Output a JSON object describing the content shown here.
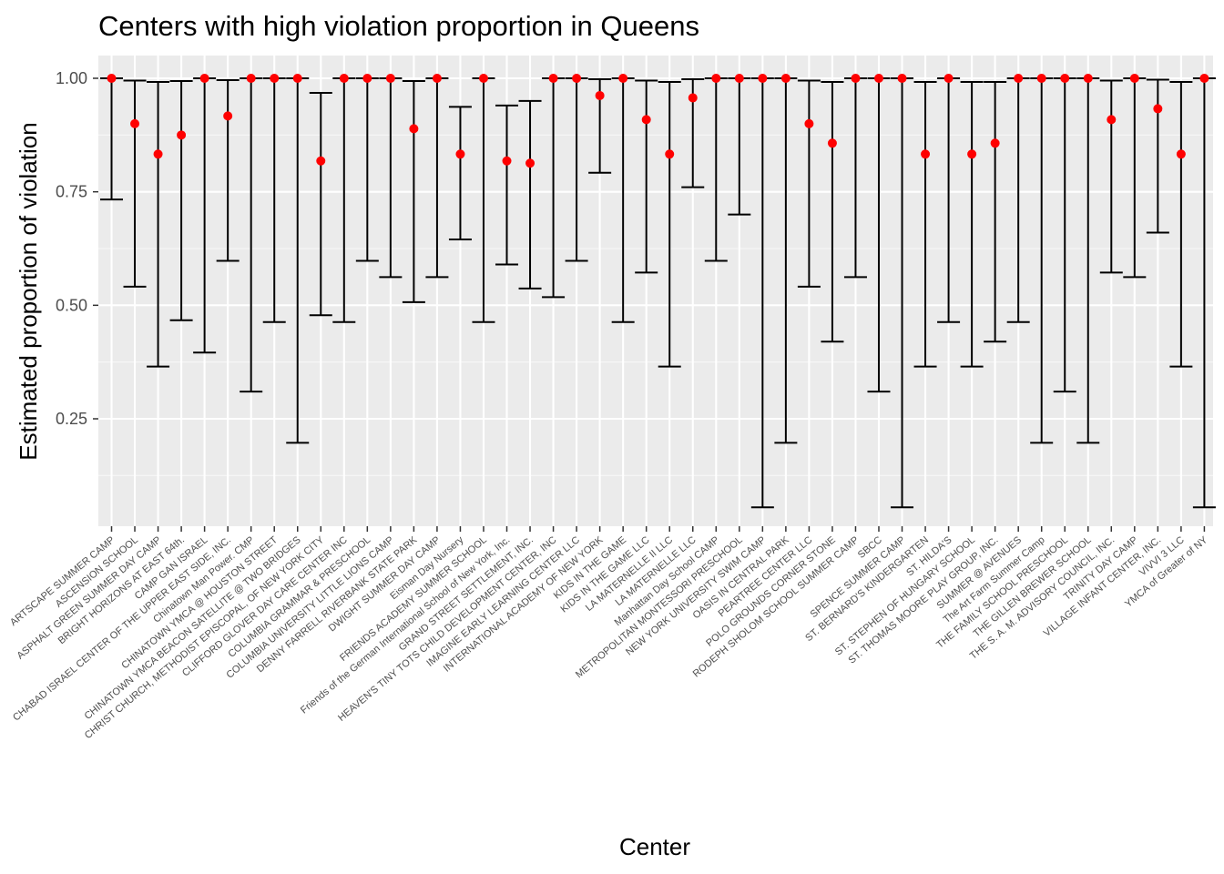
{
  "chart_data": {
    "type": "scatter",
    "title": "Centers with high violation proportion in Queens",
    "xlabel": "Center",
    "ylabel": "Estimated proportion of violation",
    "ylim": [
      0.0,
      1.0
    ],
    "yticks": [
      "0.25",
      "0.50",
      "0.75",
      "1.00"
    ],
    "grid": true,
    "point_color": "#ff0000",
    "errorbar_color": "#000000",
    "panel_background": "#ebebeb",
    "points": [
      {
        "center": "ARTSCAPE SUMMER CAMP",
        "estimate": 1.0,
        "lower": 0.733,
        "upper": 1.0
      },
      {
        "center": "ASCENSION SCHOOL",
        "estimate": 0.9,
        "lower": 0.541,
        "upper": 0.995
      },
      {
        "center": "ASPHALT GREEN SUMMER DAY CAMP",
        "estimate": 0.833,
        "lower": 0.365,
        "upper": 0.992
      },
      {
        "center": "BRIGHT HORIZONS AT EAST 64th.",
        "estimate": 0.875,
        "lower": 0.467,
        "upper": 0.994
      },
      {
        "center": "CAMP GAN ISRAEL",
        "estimate": 1.0,
        "lower": 0.396,
        "upper": 1.0
      },
      {
        "center": "CHABAD ISRAEL CENTER OF THE UPPER EAST SIDE, INC.",
        "estimate": 0.917,
        "lower": 0.598,
        "upper": 0.996
      },
      {
        "center": "Chinatown Man Power. CMP",
        "estimate": 1.0,
        "lower": 0.31,
        "upper": 1.0
      },
      {
        "center": "CHINATOWN YMCA @ HOUSTON STREET",
        "estimate": 1.0,
        "lower": 0.463,
        "upper": 1.0
      },
      {
        "center": "CHINATOWN YMCA BEACON SATELLITE @ TWO BRIDGES",
        "estimate": 1.0,
        "lower": 0.197,
        "upper": 1.0
      },
      {
        "center": "CHRIST CHURCH, METHODIST EPISCOPAL, OF NEW YORK CITY",
        "estimate": 0.818,
        "lower": 0.478,
        "upper": 0.968
      },
      {
        "center": "CLIFFORD GLOVER DAY CARE CENTER INC",
        "estimate": 1.0,
        "lower": 0.463,
        "upper": 1.0
      },
      {
        "center": "COLUMBIA GRAMMAR & PRESCHOOL",
        "estimate": 1.0,
        "lower": 0.598,
        "upper": 1.0
      },
      {
        "center": "COLUMBIA UNIVERSITY LITTLE LIONS CAMP",
        "estimate": 1.0,
        "lower": 0.562,
        "upper": 1.0
      },
      {
        "center": "DENNY FARRELL RIVERBANK STATE PARK",
        "estimate": 0.889,
        "lower": 0.507,
        "upper": 0.994
      },
      {
        "center": "DWIGHT SUMMER DAY CAMP",
        "estimate": 1.0,
        "lower": 0.562,
        "upper": 1.0
      },
      {
        "center": "Eisman Day Nursery",
        "estimate": 0.833,
        "lower": 0.645,
        "upper": 0.937
      },
      {
        "center": "FRIENDS ACADEMY SUMMER SCHOOL",
        "estimate": 1.0,
        "lower": 0.463,
        "upper": 1.0
      },
      {
        "center": "Friends of the German International School of New York, Inc.",
        "estimate": 0.818,
        "lower": 0.59,
        "upper": 0.94
      },
      {
        "center": "GRAND STREET SETTLEMENT, INC.",
        "estimate": 0.813,
        "lower": 0.537,
        "upper": 0.95
      },
      {
        "center": "HEAVEN'S TINY TOTS CHILD DEVELOPMENT CENTER, INC",
        "estimate": 1.0,
        "lower": 0.518,
        "upper": 1.0
      },
      {
        "center": "IMAGINE EARLY LEARNING CENTER LLC",
        "estimate": 1.0,
        "lower": 0.598,
        "upper": 1.0
      },
      {
        "center": "INTERNATIONAL ACADEMY OF NEW YORK",
        "estimate": 0.962,
        "lower": 0.792,
        "upper": 0.998
      },
      {
        "center": "KIDS IN THE GAME",
        "estimate": 1.0,
        "lower": 0.463,
        "upper": 1.0
      },
      {
        "center": "KIDS IN THE GAME LLC",
        "estimate": 0.909,
        "lower": 0.572,
        "upper": 0.995
      },
      {
        "center": "LA MATERNELLE II LLC",
        "estimate": 0.833,
        "lower": 0.365,
        "upper": 0.992
      },
      {
        "center": "LA MATERNELLE LLC",
        "estimate": 0.957,
        "lower": 0.76,
        "upper": 0.998
      },
      {
        "center": "Manhattan Day School CAMP",
        "estimate": 1.0,
        "lower": 0.598,
        "upper": 1.0
      },
      {
        "center": "METROPOLITAN MONTESSORI PRESCHOOL",
        "estimate": 1.0,
        "lower": 0.7,
        "upper": 1.0
      },
      {
        "center": "NEW YORK UNIVERSITY SWIM CAMP",
        "estimate": 1.0,
        "lower": 0.055,
        "upper": 1.0
      },
      {
        "center": "OASIS IN CENTRAL PARK",
        "estimate": 1.0,
        "lower": 0.197,
        "upper": 1.0
      },
      {
        "center": "PEARTREE CENTER LLC",
        "estimate": 0.9,
        "lower": 0.541,
        "upper": 0.995
      },
      {
        "center": "POLO GROUNDS CORNER STONE",
        "estimate": 0.857,
        "lower": 0.42,
        "upper": 0.992
      },
      {
        "center": "RODEPH SHOLOM SCHOOL SUMMER CAMP",
        "estimate": 1.0,
        "lower": 0.562,
        "upper": 1.0
      },
      {
        "center": "SBCC",
        "estimate": 1.0,
        "lower": 0.31,
        "upper": 1.0
      },
      {
        "center": "SPENCE SUMMER CAMP",
        "estimate": 1.0,
        "lower": 0.055,
        "upper": 1.0
      },
      {
        "center": "ST. BERNARD'S KINDERGARTEN",
        "estimate": 0.833,
        "lower": 0.365,
        "upper": 0.992
      },
      {
        "center": "ST. HILDA'S",
        "estimate": 1.0,
        "lower": 0.463,
        "upper": 1.0
      },
      {
        "center": "ST. STEPHEN OF HUNGARY SCHOOL",
        "estimate": 0.833,
        "lower": 0.365,
        "upper": 0.992
      },
      {
        "center": "ST. THOMAS MOORE PLAY GROUP, INC.",
        "estimate": 0.857,
        "lower": 0.42,
        "upper": 0.992
      },
      {
        "center": "SUMMER @ AVENUES",
        "estimate": 1.0,
        "lower": 0.463,
        "upper": 1.0
      },
      {
        "center": "The Art Farm Summer Camp",
        "estimate": 1.0,
        "lower": 0.197,
        "upper": 1.0
      },
      {
        "center": "THE FAMILY SCHOOL PRESCHOOL",
        "estimate": 1.0,
        "lower": 0.31,
        "upper": 1.0
      },
      {
        "center": "THE GILLEN BREWER SCHOOL",
        "estimate": 1.0,
        "lower": 0.197,
        "upper": 1.0
      },
      {
        "center": "THE S. A. M. ADVISORY COUNCIL, INC.",
        "estimate": 0.909,
        "lower": 0.572,
        "upper": 0.995
      },
      {
        "center": "TRINITY DAY CAMP",
        "estimate": 1.0,
        "lower": 0.562,
        "upper": 1.0
      },
      {
        "center": "VILLAGE INFANT CENTER, INC.",
        "estimate": 0.933,
        "lower": 0.66,
        "upper": 0.997
      },
      {
        "center": "VIVVI 3 LLC",
        "estimate": 0.833,
        "lower": 0.365,
        "upper": 0.992
      },
      {
        "center": "YMCA of Greater of NY",
        "estimate": 1.0,
        "lower": 0.055,
        "upper": 1.0
      }
    ]
  }
}
